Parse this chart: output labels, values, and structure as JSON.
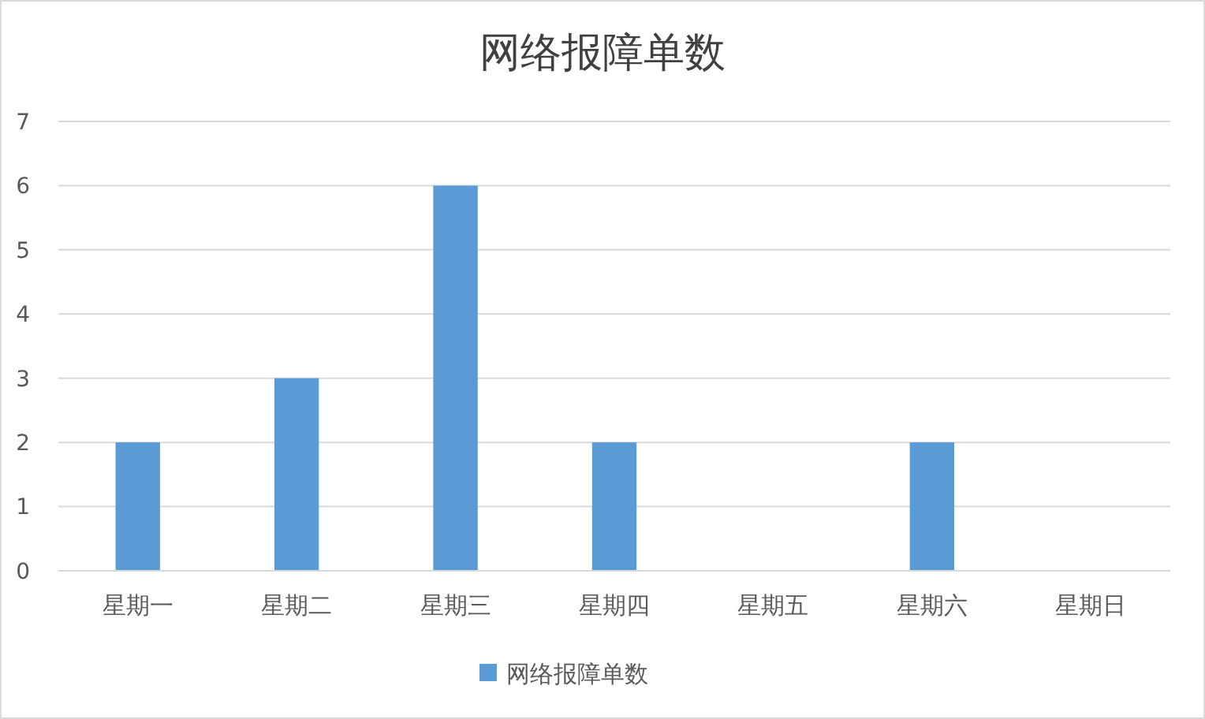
{
  "chart_data": {
    "type": "bar",
    "title": "网络报障单数",
    "categories": [
      "星期一",
      "星期二",
      "星期三",
      "星期四",
      "星期五",
      "星期六",
      "星期日"
    ],
    "series": [
      {
        "name": "网络报障单数",
        "color": "#5b9bd5",
        "values": [
          2,
          3,
          6,
          2,
          0,
          2,
          0
        ]
      }
    ],
    "ylim": [
      0,
      7
    ],
    "yticks": [
      0,
      1,
      2,
      3,
      4,
      5,
      6,
      7
    ],
    "grid": "y",
    "legend": "bottom"
  }
}
